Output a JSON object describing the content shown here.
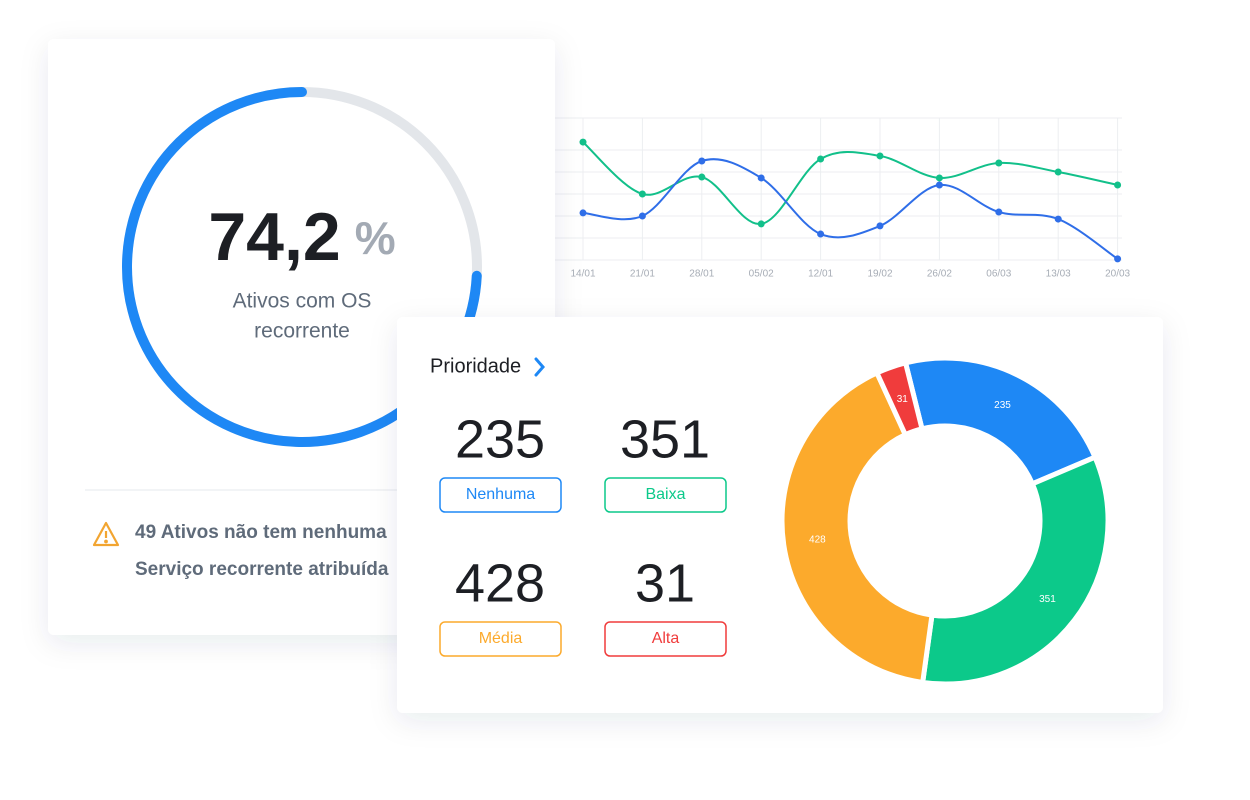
{
  "chart_data": [
    {
      "type": "gauge",
      "value": 74.2,
      "value_label": "74,2",
      "unit": "%",
      "label_lines": [
        "Ativos com OS",
        "recorrente"
      ],
      "lim": [
        0,
        100
      ],
      "color": "#1e88f5",
      "track_color": "#e3e6ea"
    },
    {
      "type": "line",
      "categories": [
        "14/01",
        "21/01",
        "28/01",
        "05/02",
        "12/01",
        "19/02",
        "26/02",
        "06/03",
        "13/03",
        "20/03"
      ],
      "ylim": [
        0,
        6
      ],
      "grid": true,
      "series": [
        {
          "color": "#12c08a",
          "values": [
            5.36,
            3.0,
            3.77,
            1.64,
            4.59,
            4.73,
            3.73,
            4.41,
            4.0,
            3.41
          ]
        },
        {
          "color": "#2f6ee8",
          "values": [
            2.14,
            2.0,
            4.5,
            3.73,
            1.18,
            1.55,
            3.41,
            2.18,
            1.86,
            0.05
          ]
        }
      ]
    },
    {
      "type": "pie",
      "donut": true,
      "title": "Prioridade",
      "categories": [
        "Nenhuma",
        "Baixa",
        "Média",
        "Alta"
      ],
      "values": [
        235,
        351,
        428,
        31
      ],
      "colors": [
        "#1e88f5",
        "#0cc98a",
        "#fcaa2c",
        "#f03c3c"
      ]
    }
  ],
  "warning": {
    "lines": [
      "49 Ativos não tem nenhuma",
      "Serviço recorrente atribuída"
    ]
  }
}
